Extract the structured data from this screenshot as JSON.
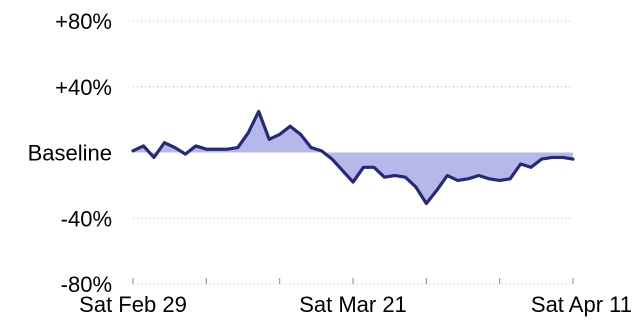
{
  "chart_data": {
    "type": "area",
    "title": "",
    "xlabel": "",
    "ylabel": "",
    "y_ticks": [
      {
        "value": 80,
        "label": "+80%"
      },
      {
        "value": 40,
        "label": "+40%"
      },
      {
        "value": 0,
        "label": "Baseline"
      },
      {
        "value": -40,
        "label": "-40%"
      },
      {
        "value": -80,
        "label": "-80%"
      }
    ],
    "x_ticks": [
      {
        "date": "2020-02-29",
        "label": "Sat Feb 29"
      },
      {
        "date": "2020-03-21",
        "label": "Sat Mar 21"
      },
      {
        "date": "2020-04-11",
        "label": "Sat Apr 11"
      }
    ],
    "xlim": [
      "2020-02-29",
      "2020-04-11"
    ],
    "ylim": [
      -80,
      80
    ],
    "grid": true,
    "legend": "none",
    "colors": {
      "line": "#26287a",
      "fill": "#a9abe6"
    },
    "series": [
      {
        "x": [
          "2020-02-29",
          "2020-03-01",
          "2020-03-02",
          "2020-03-03",
          "2020-03-04",
          "2020-03-05",
          "2020-03-06",
          "2020-03-07",
          "2020-03-08",
          "2020-03-09",
          "2020-03-10",
          "2020-03-11",
          "2020-03-12",
          "2020-03-13",
          "2020-03-14",
          "2020-03-15",
          "2020-03-16",
          "2020-03-17",
          "2020-03-18",
          "2020-03-19",
          "2020-03-20",
          "2020-03-21",
          "2020-03-22",
          "2020-03-23",
          "2020-03-24",
          "2020-03-25",
          "2020-03-26",
          "2020-03-27",
          "2020-03-28",
          "2020-03-29",
          "2020-03-30",
          "2020-03-31",
          "2020-04-01",
          "2020-04-02",
          "2020-04-03",
          "2020-04-04",
          "2020-04-05",
          "2020-04-06",
          "2020-04-07",
          "2020-04-08",
          "2020-04-09",
          "2020-04-10",
          "2020-04-11"
        ],
        "values": [
          1,
          4,
          -3,
          6,
          3,
          -1,
          4,
          2,
          2,
          2,
          3,
          12,
          25,
          8,
          11,
          16,
          11,
          3,
          1,
          -4,
          -11,
          -18,
          -9,
          -9,
          -15,
          -14,
          -15,
          -21,
          -31,
          -23,
          -14,
          -17,
          -16,
          -14,
          -16,
          -17,
          -16,
          -7,
          -9,
          -4,
          -3,
          -3,
          -4
        ]
      }
    ]
  }
}
